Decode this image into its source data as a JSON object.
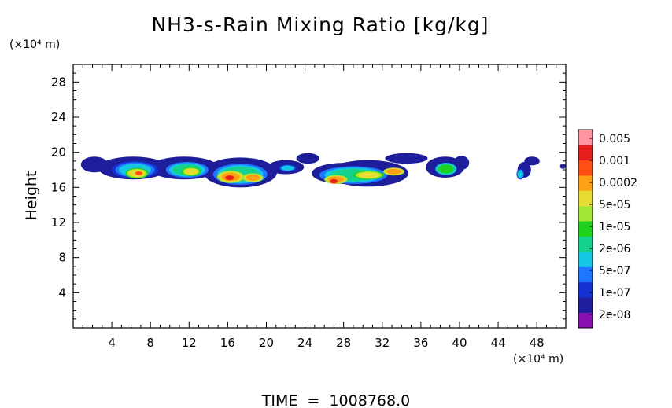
{
  "chart_data": {
    "type": "heatmap",
    "title": "NH3-s-Rain Mixing Ratio [kg/kg]",
    "xlabel": "",
    "ylabel": "Height",
    "x_unit_label": "(×10⁴ m)",
    "y_unit_label": "(×10⁴ m)",
    "footer": "TIME  =  1008768.0",
    "xlim": [
      0,
      51
    ],
    "ylim": [
      0,
      30
    ],
    "x_ticks": [
      4,
      8,
      12,
      16,
      20,
      24,
      28,
      32,
      36,
      40,
      44,
      48
    ],
    "x_tick_labels": [
      "4",
      "8",
      "12",
      "16",
      "20",
      "24",
      "28",
      "32",
      "36",
      "40",
      "44",
      "48"
    ],
    "y_ticks": [
      4,
      8,
      12,
      16,
      20,
      24,
      28
    ],
    "y_tick_labels": [
      "4",
      "8",
      "12",
      "16",
      "20",
      "24",
      "28"
    ],
    "colorbar": {
      "colors": [
        "#8b10b4",
        "#1e1e9c",
        "#1432d2",
        "#1e78ff",
        "#14c8e6",
        "#14d28c",
        "#1ed21e",
        "#a0e632",
        "#e6dc32",
        "#ffa014",
        "#ff5014",
        "#e61e1e",
        "#ff96a0"
      ],
      "labels": [
        "2e-08",
        "1e-07",
        "5e-07",
        "2e-06",
        "1e-05",
        "5e-05",
        "0.0002",
        "0.001",
        "0.005"
      ],
      "label_values": [
        2e-08,
        1e-07,
        5e-07,
        2e-06,
        1e-05,
        5e-05,
        0.0002,
        0.001,
        0.005
      ]
    },
    "blobs": [
      {
        "x": 2.2,
        "y": 18.6,
        "rx": 1.4,
        "ry": 0.9,
        "level": 1
      },
      {
        "x": 6.2,
        "y": 18.2,
        "rx": 3.6,
        "ry": 1.3,
        "level": 1
      },
      {
        "x": 6.4,
        "y": 18.0,
        "rx": 2.4,
        "ry": 1.0,
        "level": 4
      },
      {
        "x": 6.6,
        "y": 17.6,
        "rx": 1.2,
        "ry": 0.6,
        "level": 8
      },
      {
        "x": 6.8,
        "y": 17.6,
        "rx": 0.5,
        "ry": 0.3,
        "level": 10
      },
      {
        "x": 11.5,
        "y": 18.2,
        "rx": 3.6,
        "ry": 1.3,
        "level": 1
      },
      {
        "x": 11.8,
        "y": 18.0,
        "rx": 2.2,
        "ry": 0.9,
        "level": 5
      },
      {
        "x": 12.2,
        "y": 17.8,
        "rx": 1.0,
        "ry": 0.5,
        "level": 8
      },
      {
        "x": 17.3,
        "y": 17.7,
        "rx": 3.8,
        "ry": 1.7,
        "level": 1
      },
      {
        "x": 17.3,
        "y": 17.5,
        "rx": 2.8,
        "ry": 1.2,
        "level": 5
      },
      {
        "x": 16.3,
        "y": 17.2,
        "rx": 1.4,
        "ry": 0.7,
        "level": 9
      },
      {
        "x": 16.2,
        "y": 17.1,
        "rx": 0.6,
        "ry": 0.35,
        "level": 11
      },
      {
        "x": 18.6,
        "y": 17.1,
        "rx": 1.1,
        "ry": 0.5,
        "level": 9
      },
      {
        "x": 22.0,
        "y": 18.3,
        "rx": 1.9,
        "ry": 0.8,
        "level": 1
      },
      {
        "x": 22.2,
        "y": 18.2,
        "rx": 0.9,
        "ry": 0.4,
        "level": 4
      },
      {
        "x": 24.3,
        "y": 19.3,
        "rx": 1.2,
        "ry": 0.6,
        "level": 1
      },
      {
        "x": 30.5,
        "y": 17.6,
        "rx": 4.2,
        "ry": 1.5,
        "level": 1
      },
      {
        "x": 28.0,
        "y": 17.6,
        "rx": 3.3,
        "ry": 1.2,
        "level": 1
      },
      {
        "x": 29.0,
        "y": 17.4,
        "rx": 3.5,
        "ry": 1.0,
        "level": 5
      },
      {
        "x": 27.2,
        "y": 16.9,
        "rx": 1.2,
        "ry": 0.5,
        "level": 9
      },
      {
        "x": 27.0,
        "y": 16.7,
        "rx": 0.5,
        "ry": 0.3,
        "level": 11
      },
      {
        "x": 30.6,
        "y": 17.4,
        "rx": 1.6,
        "ry": 0.5,
        "level": 8
      },
      {
        "x": 33.2,
        "y": 17.8,
        "rx": 1.1,
        "ry": 0.45,
        "level": 9
      },
      {
        "x": 34.5,
        "y": 19.3,
        "rx": 2.2,
        "ry": 0.6,
        "level": 1
      },
      {
        "x": 38.5,
        "y": 18.3,
        "rx": 2.0,
        "ry": 1.2,
        "level": 1
      },
      {
        "x": 38.6,
        "y": 18.1,
        "rx": 1.1,
        "ry": 0.7,
        "level": 6
      },
      {
        "x": 40.2,
        "y": 18.8,
        "rx": 0.8,
        "ry": 0.8,
        "level": 1
      },
      {
        "x": 46.7,
        "y": 18.0,
        "rx": 0.7,
        "ry": 0.9,
        "level": 1
      },
      {
        "x": 47.5,
        "y": 19.0,
        "rx": 0.8,
        "ry": 0.5,
        "level": 1
      },
      {
        "x": 46.3,
        "y": 17.5,
        "rx": 0.4,
        "ry": 0.6,
        "level": 4
      },
      {
        "x": 50.7,
        "y": 18.4,
        "rx": 0.3,
        "ry": 0.3,
        "level": 1
      }
    ]
  }
}
